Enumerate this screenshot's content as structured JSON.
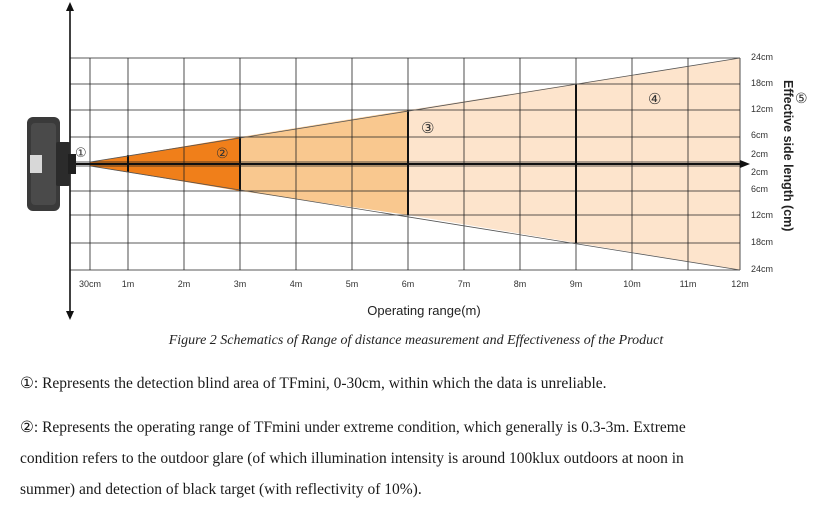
{
  "figure": {
    "x_ticks": [
      "30cm",
      "1m",
      "2m",
      "3m",
      "4m",
      "5m",
      "6m",
      "7m",
      "8m",
      "9m",
      "10m",
      "11m",
      "12m"
    ],
    "x_label": "Operating range(m)",
    "y_ticks": [
      "24cm",
      "18cm",
      "12cm",
      "6cm",
      "2cm",
      "2cm",
      "6cm",
      "12cm",
      "18cm",
      "24cm"
    ],
    "y_label": "Effective side length (cm)",
    "markers": [
      "①",
      "②",
      "③",
      "④",
      "⑤"
    ],
    "colors": {
      "zone2": "#f07f1a",
      "zone3": "#f9c88f",
      "zone4": "#fde4cc",
      "grid": "#222222",
      "device": "#3a3a3a"
    }
  },
  "caption": "Figure 2 Schematics of Range of distance measurement and Effectiveness of the Product",
  "paragraphs": [
    "①: Represents the detection blind area of TFmini, 0-30cm, within which the data is unreliable.",
    "②: Represents the operating range of TFmini under extreme condition, which generally is 0.3-3m. Extreme",
    "condition refers to the outdoor glare (of which illumination intensity is around 100klux outdoors at noon in",
    "summer) and detection of black target (with reflectivity of 10%)."
  ]
}
